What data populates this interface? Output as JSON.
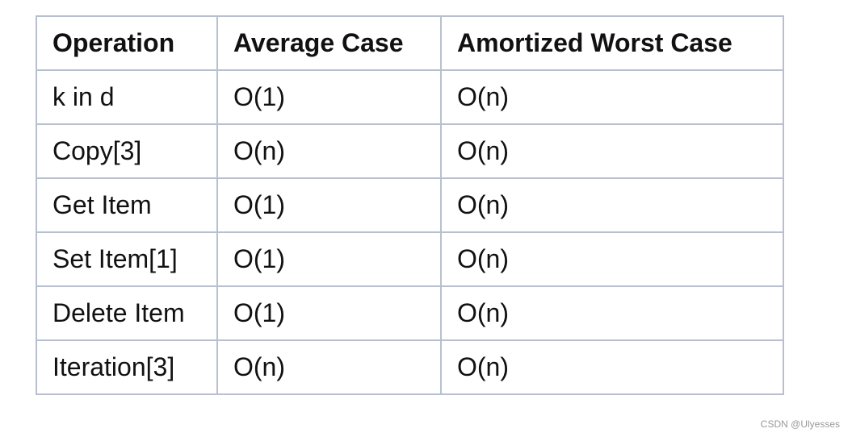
{
  "table": {
    "header": [
      "Operation",
      "Average Case",
      "Amortized Worst Case"
    ],
    "rows": [
      [
        "k in d",
        "O(1)",
        "O(n)"
      ],
      [
        "Copy[3]",
        "O(n)",
        "O(n)"
      ],
      [
        "Get Item",
        "O(1)",
        "O(n)"
      ],
      [
        "Set Item[1]",
        "O(1)",
        "O(n)"
      ],
      [
        "Delete Item",
        "O(1)",
        "O(n)"
      ],
      [
        "Iteration[3]",
        "O(n)",
        "O(n)"
      ]
    ]
  },
  "watermark": "CSDN @Ulyesses"
}
